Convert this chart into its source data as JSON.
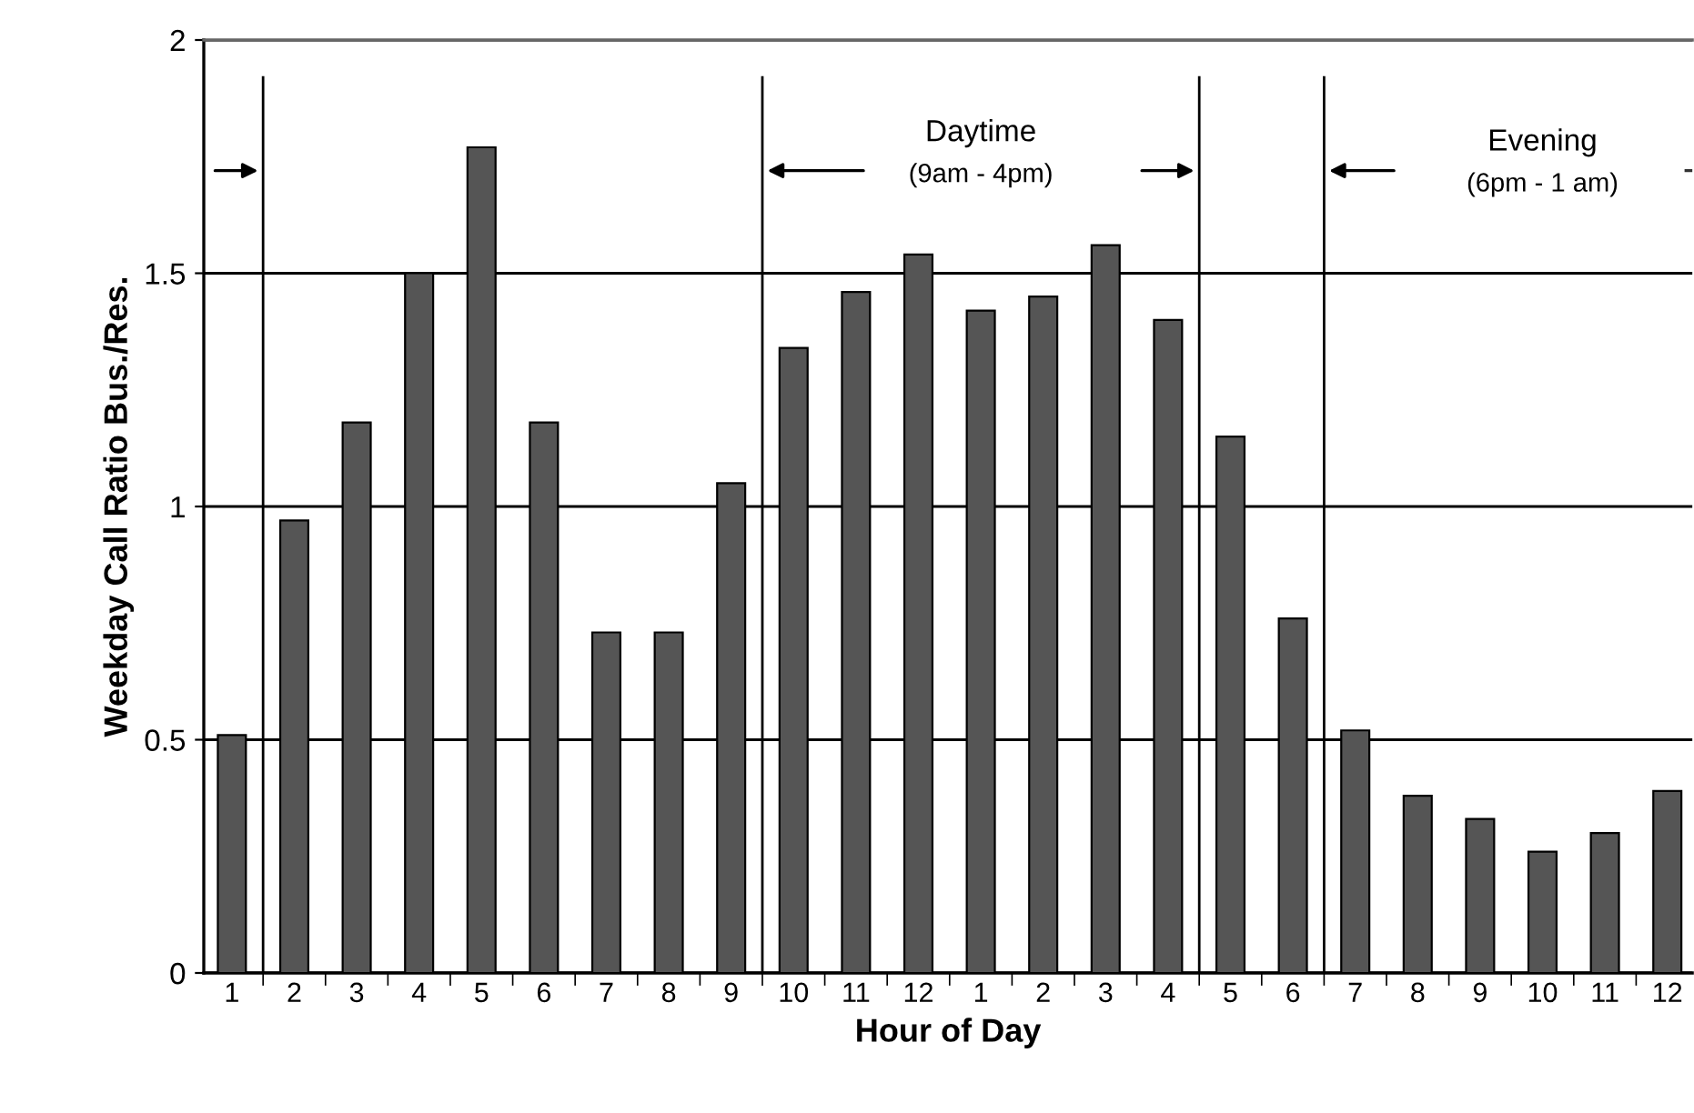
{
  "chart_data": {
    "type": "bar",
    "xlabel": "Hour of Day",
    "ylabel": "Weekday Call Ratio Bus./Res.",
    "categories": [
      "1",
      "2",
      "3",
      "4",
      "5",
      "6",
      "7",
      "8",
      "9",
      "10",
      "11",
      "12",
      "1",
      "2",
      "3",
      "4",
      "5",
      "6",
      "7",
      "8",
      "9",
      "10",
      "11",
      "12"
    ],
    "values": [
      0.51,
      0.97,
      1.18,
      1.5,
      1.77,
      1.18,
      0.73,
      0.73,
      1.05,
      1.34,
      1.46,
      1.54,
      1.42,
      1.45,
      1.56,
      1.4,
      1.15,
      0.76,
      0.52,
      0.38,
      0.33,
      0.26,
      0.3,
      0.39
    ],
    "color": "#555555",
    "ylim": [
      0,
      2
    ],
    "yticks": [
      0,
      0.5,
      1,
      1.5,
      2
    ],
    "grid": "y",
    "annotations": [
      "Daytime",
      "(9am - 4pm)",
      "Evening",
      "(6pm - 1 am)"
    ]
  }
}
